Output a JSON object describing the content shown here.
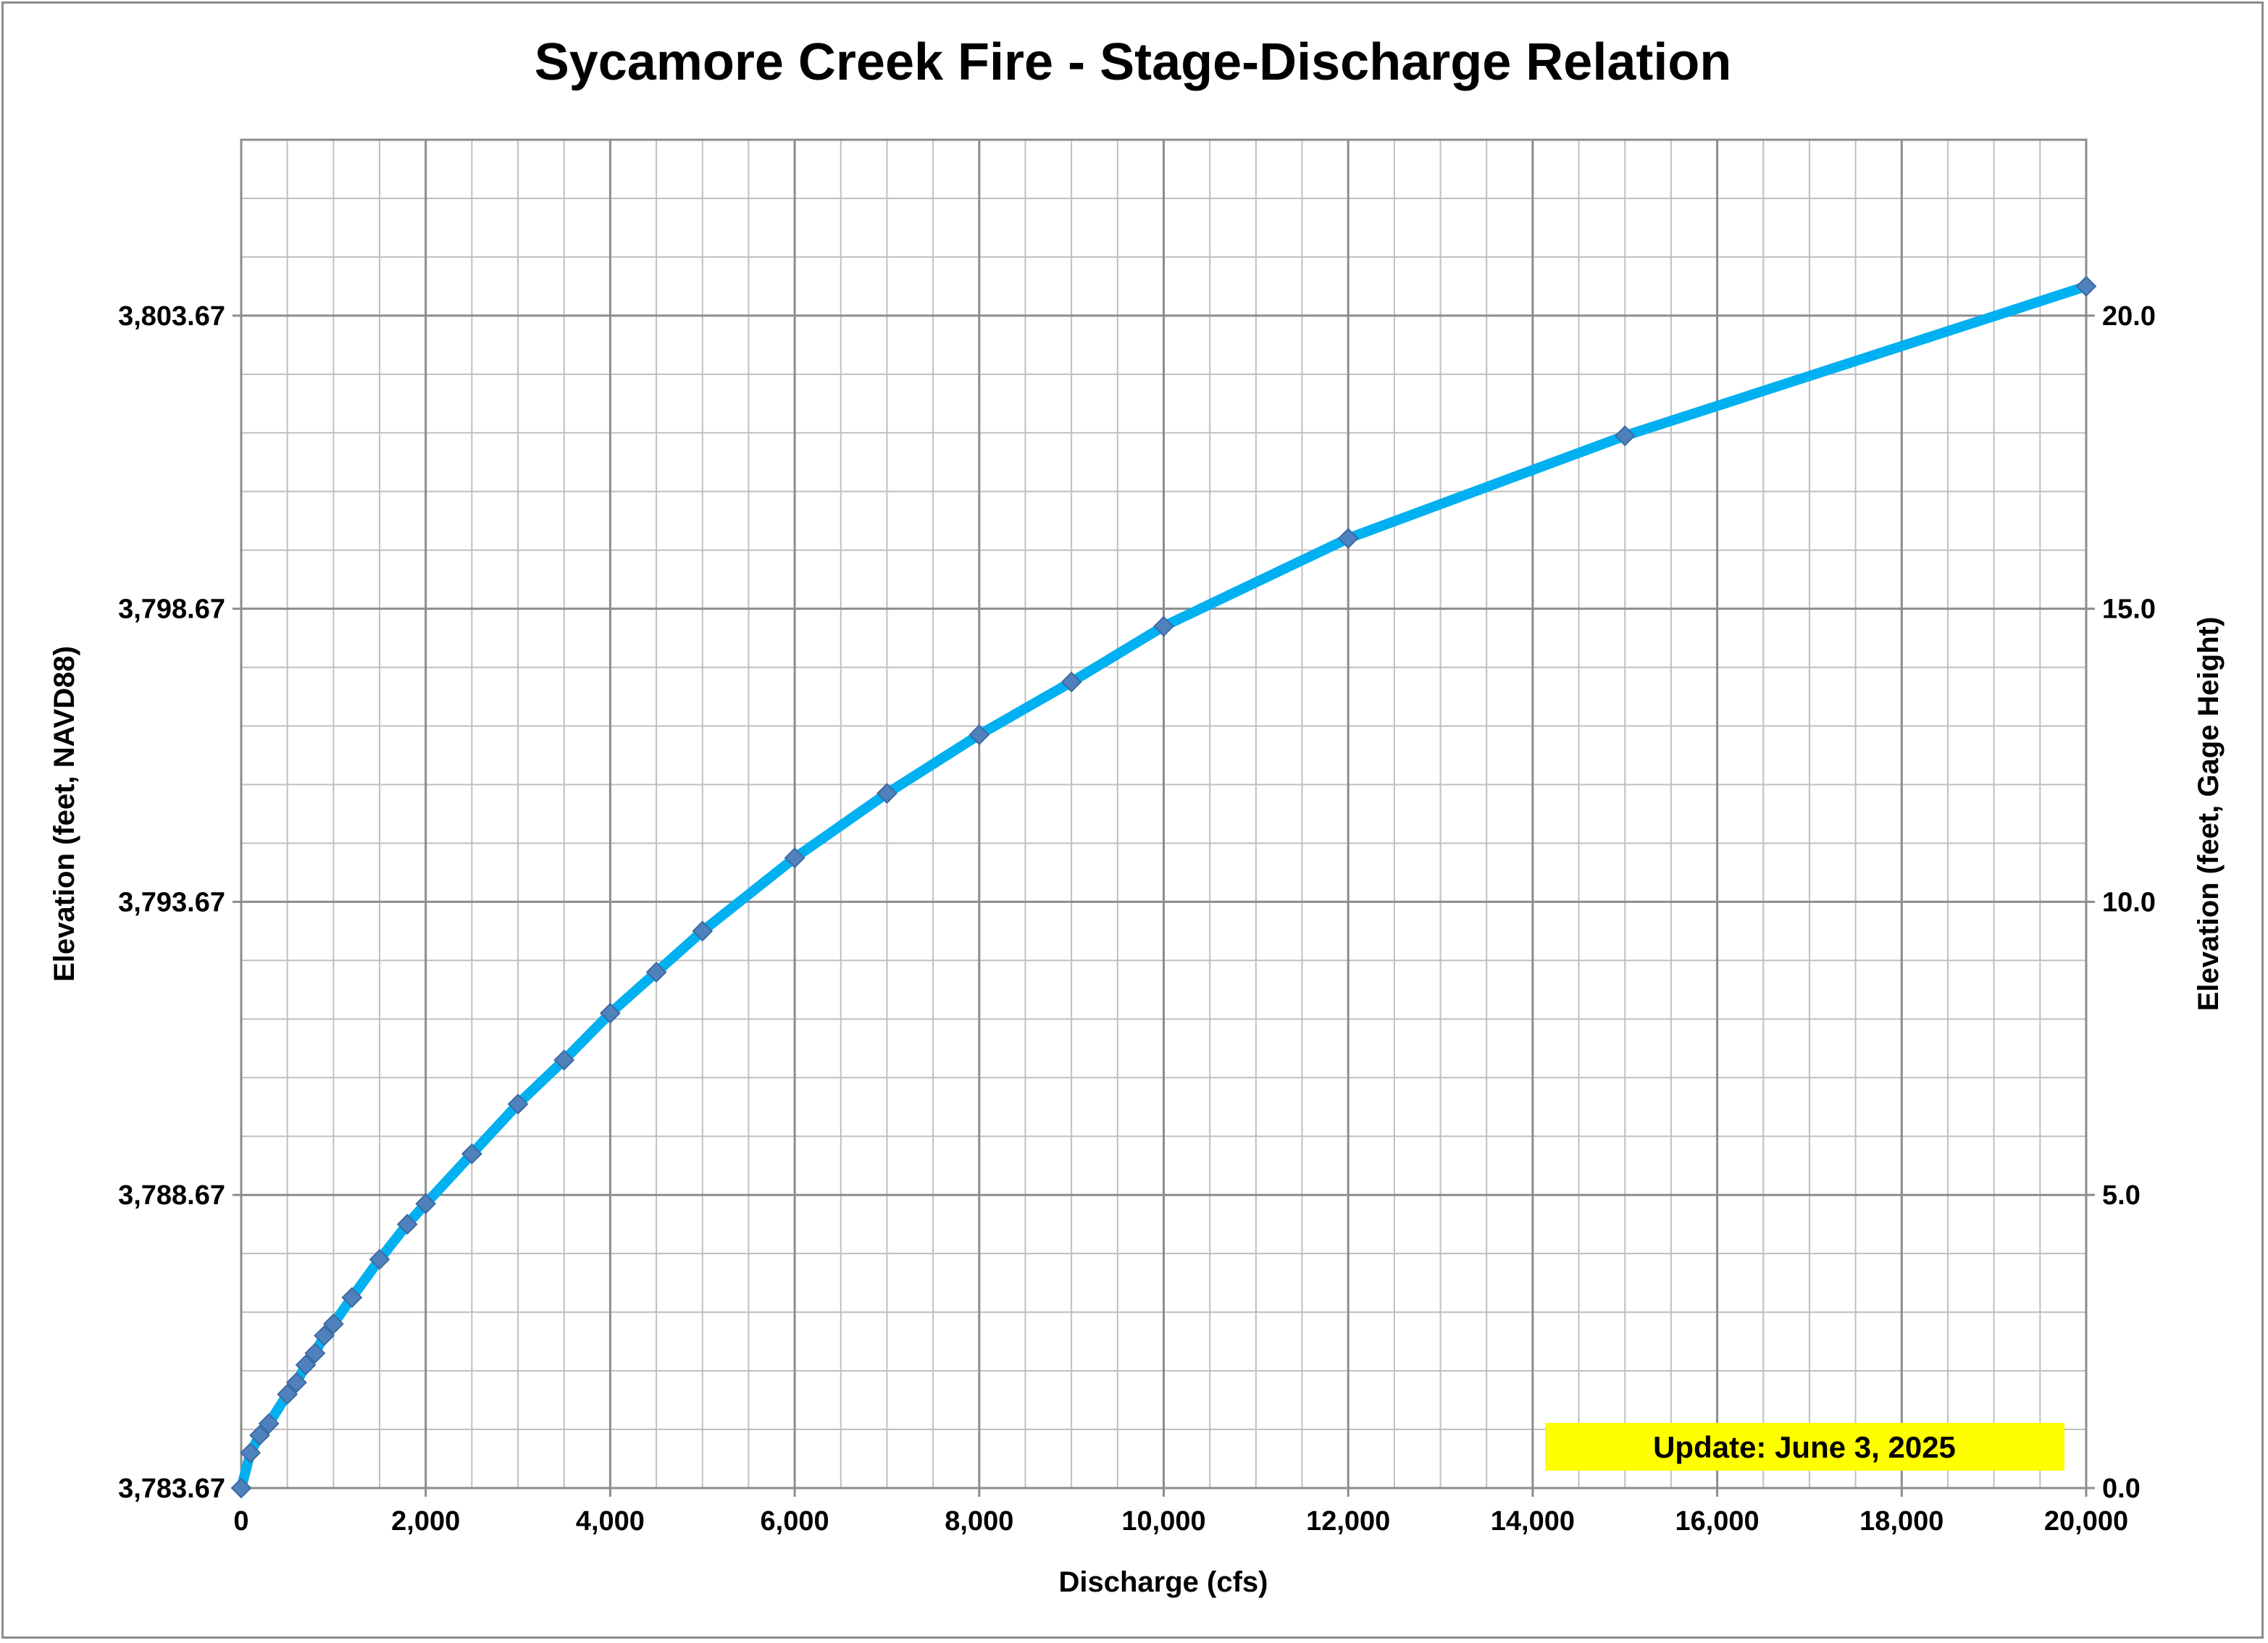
{
  "chart_data": {
    "type": "line",
    "title": "Sycamore Creek Fire - Stage-Discharge Relation",
    "xlabel": "Discharge (cfs)",
    "ylabel_left": "Elevation (feet, NAVD88)",
    "ylabel_right": "Elevation (feet, Gage Height)",
    "xlim": [
      0,
      20000
    ],
    "ylim_right": [
      0,
      23
    ],
    "left_axis_offset": 3783.67,
    "x_ticks": [
      "0",
      "2,000",
      "4,000",
      "6,000",
      "8,000",
      "10,000",
      "12,000",
      "14,000",
      "16,000",
      "18,000",
      "20,000"
    ],
    "y_left_ticks": [
      "3,783.67",
      "3,788.67",
      "3,793.67",
      "3,798.67",
      "3,803.67"
    ],
    "y_right_ticks": [
      "0.0",
      "5.0",
      "10.0",
      "15.0",
      "20.0"
    ],
    "grid": true,
    "line_color": "#00b0f0",
    "marker_color": "#4f81bd",
    "note": "Update: June 3, 2025",
    "note_color": "#ffff00",
    "series": [
      {
        "x": [
          0,
          100,
          200,
          300,
          500,
          600,
          700,
          800,
          900,
          1000,
          1200,
          1500,
          1800,
          2000,
          2500,
          3000,
          3500,
          4000,
          4500,
          5000,
          6000,
          7000,
          8000,
          9000,
          10000,
          12000,
          15000,
          20000
        ],
        "y": [
          0.0,
          0.6,
          0.9,
          1.1,
          1.6,
          1.8,
          2.1,
          2.3,
          2.6,
          2.8,
          3.25,
          3.9,
          4.5,
          4.85,
          5.7,
          6.55,
          7.3,
          8.1,
          8.8,
          9.5,
          10.75,
          11.85,
          12.85,
          13.75,
          14.7,
          16.2,
          17.95,
          20.5
        ]
      }
    ]
  }
}
